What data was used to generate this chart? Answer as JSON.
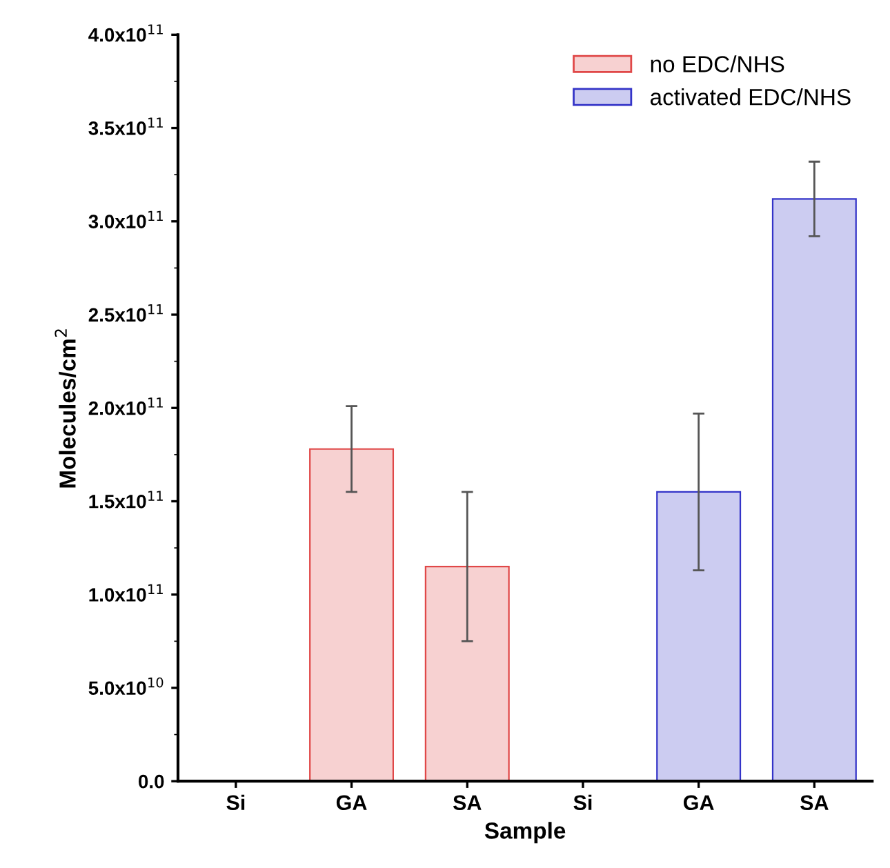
{
  "chart_data": {
    "type": "bar",
    "xlabel": "Sample",
    "ylabel": "Molecules/cm$^{2}$",
    "categories": [
      "Si",
      "GA",
      "SA",
      "Si",
      "GA",
      "SA"
    ],
    "series": [
      {
        "name": "no EDC/NHS",
        "color": "#e04848",
        "values": [
          0,
          178000000000.0,
          115000000000.0,
          null,
          null,
          null
        ],
        "errors": [
          null,
          23000000000.0,
          40000000000.0,
          null,
          null,
          null
        ]
      },
      {
        "name": "activated EDC/NHS",
        "color": "#3434c8",
        "values": [
          null,
          null,
          null,
          0,
          155000000000.0,
          312000000000.0
        ],
        "errors": [
          null,
          null,
          null,
          null,
          42000000000.0,
          20000000000.0
        ]
      }
    ],
    "ylim": [
      0,
      400000000000.0
    ],
    "yticks": [
      {
        "value": 0,
        "label": "0.0"
      },
      {
        "value": 50000000000.0,
        "label": "5.0x10$^{10}$"
      },
      {
        "value": 100000000000.0,
        "label": "1.0x10$^{11}$"
      },
      {
        "value": 150000000000.0,
        "label": "1.5x10$^{11}$"
      },
      {
        "value": 200000000000.0,
        "label": "2.0x10$^{11}$"
      },
      {
        "value": 250000000000.0,
        "label": "2.5x10$^{11}$"
      },
      {
        "value": 300000000000.0,
        "label": "3.0x10$^{11}$"
      },
      {
        "value": 350000000000.0,
        "label": "3.5x10$^{11}$"
      },
      {
        "value": 400000000000.0,
        "label": "4.0x10$^{11}$"
      }
    ],
    "legend": "top right",
    "grid": false
  }
}
